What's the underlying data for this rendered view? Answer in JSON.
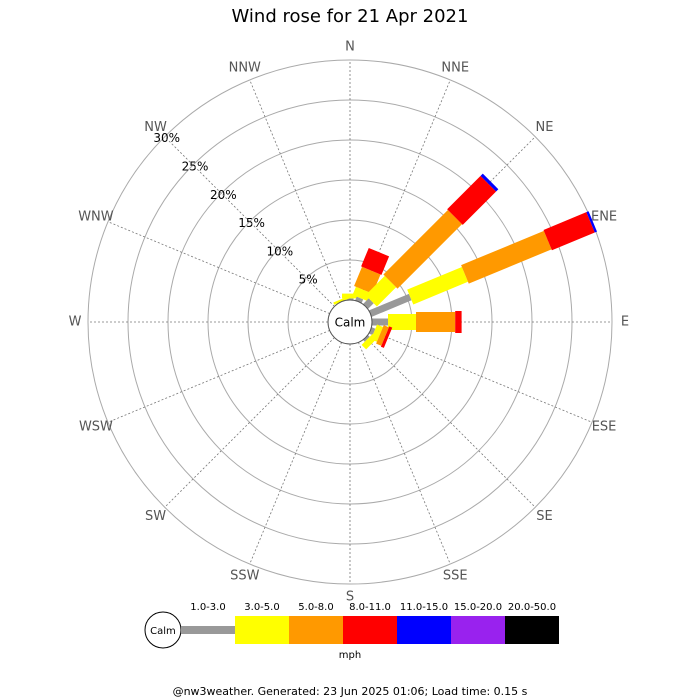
{
  "chart_data": {
    "type": "windrose",
    "title": "Wind rose for 21 Apr 2021",
    "categories": [
      "N",
      "NNE",
      "NE",
      "ENE",
      "E",
      "ESE",
      "SE",
      "SSE",
      "S",
      "SSW",
      "SW",
      "WSW",
      "W",
      "WNW",
      "NW",
      "NNW"
    ],
    "series": [
      {
        "name": "1.0-3.0",
        "color": "#999999",
        "values": [
          0.2,
          0.5,
          1,
          5.4,
          2,
          0.5,
          0.3,
          0,
          0,
          0,
          0,
          0,
          0,
          0,
          0,
          0
        ]
      },
      {
        "name": "3.0-5.0",
        "color": "#ffff00",
        "values": [
          0.6,
          1.1,
          3.4,
          7.4,
          3.5,
          0.8,
          0.8,
          0,
          0,
          0,
          0,
          0,
          0,
          0,
          0,
          0.3
        ]
      },
      {
        "name": "5.0-8.0",
        "color": "#ff9900",
        "values": [
          0,
          2.6,
          11.4,
          11.2,
          4.9,
          0.7,
          0,
          0,
          0,
          0,
          0,
          0,
          0,
          0,
          0,
          0
        ]
      },
      {
        "name": "8.0-11.0",
        "color": "#ff0000",
        "values": [
          0,
          2.5,
          5.9,
          5.8,
          0.8,
          0.4,
          0,
          0,
          0,
          0,
          0,
          0,
          0,
          0,
          0,
          0
        ]
      },
      {
        "name": "11.0-15.0",
        "color": "#0000ff",
        "values": [
          0,
          0,
          0.4,
          0.3,
          0,
          0,
          0,
          0,
          0,
          0,
          0,
          0,
          0,
          0,
          0,
          0
        ]
      },
      {
        "name": "15.0-20.0",
        "color": "#9922ee",
        "values": [
          0,
          0,
          0,
          0,
          0,
          0,
          0,
          0,
          0,
          0,
          0,
          0,
          0,
          0,
          0,
          0
        ]
      },
      {
        "name": "20.0-50.0",
        "color": "#000000",
        "values": [
          0,
          0,
          0,
          0,
          0,
          0,
          0,
          0,
          0,
          0,
          0,
          0,
          0,
          0,
          0,
          0
        ]
      }
    ],
    "ylim": [
      0,
      30
    ],
    "yticks": [
      {
        "value": 5,
        "label": "5%"
      },
      {
        "value": 10,
        "label": "10%"
      },
      {
        "value": 15,
        "label": "15%"
      },
      {
        "value": 20,
        "label": "20%"
      },
      {
        "value": 25,
        "label": "25%"
      },
      {
        "value": 30,
        "label": "30%"
      }
    ],
    "calm_label": "Calm",
    "legend_unit": "mph",
    "footer": "@nw3weather. Generated: 23 Jun 2025 01:06; Load time: 0.15 s"
  }
}
